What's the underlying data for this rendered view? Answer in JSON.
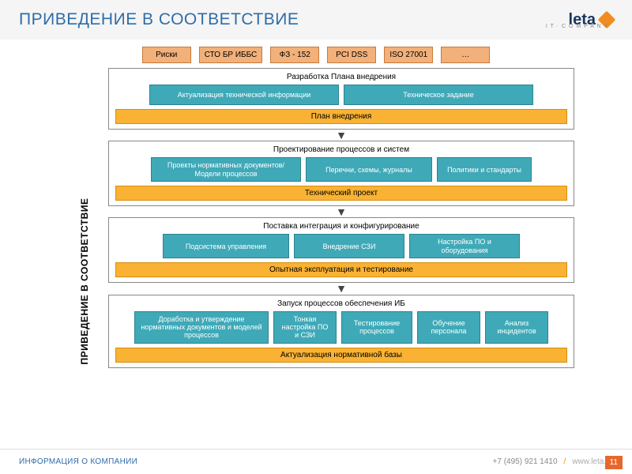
{
  "header": {
    "title": "ПРИВЕДЕНИЕ В СООТВЕТСТВИЕ",
    "logo_text": "leta",
    "logo_sub": "I T · C O M P A N Y"
  },
  "colors": {
    "title": "#2f6da8",
    "tag_bg": "#f2b07a",
    "tag_border": "#c97a3a",
    "teal_bg": "#3fa9b8",
    "teal_border": "#2a8490",
    "orange_bg": "#f9b233",
    "orange_border": "#d68f10",
    "page_badge": "#e8682c"
  },
  "tags": [
    "Риски",
    "СТО БР ИББС",
    "ФЗ - 152",
    "PCI DSS",
    "ISO 27001",
    "…"
  ],
  "side_label": "ПРИВЕДЕНИЕ В СООТВЕТСТВИЕ",
  "stages": [
    {
      "title": "Разработка Плана внедрения",
      "items": [
        "Актуализация технической информации",
        "Техническое задание"
      ],
      "result": "План внедрения",
      "item_widths": [
        240,
        240
      ]
    },
    {
      "title": "Проектирование процессов и систем",
      "items": [
        "Проекты нормативных документов/ Модели процессов",
        "Перечни, схемы, журналы",
        "Политики и стандарты"
      ],
      "result": "Технический проект",
      "item_widths": [
        190,
        160,
        120
      ]
    },
    {
      "title": "Поставка интеграция и конфигурирование",
      "items": [
        "Подсистема управления",
        "Внедрение СЗИ",
        "Настройка ПО и оборудования"
      ],
      "result": "Опытная эксплуатация и тестирование",
      "item_widths": [
        160,
        140,
        140
      ]
    },
    {
      "title": "Запуск процессов обеспечения ИБ",
      "items": [
        "Доработка и утверждение нормативных документов и моделей процессов",
        "Тонкая настройка ПО и СЗИ",
        "Тестирование процессов",
        "Обучение персонала",
        "Анализ инцидентов"
      ],
      "result": "Актуализация нормативной базы",
      "item_widths": [
        170,
        80,
        90,
        80,
        80
      ]
    }
  ],
  "footer": {
    "left": "ИНФОРМАЦИЯ О КОМПАНИИ",
    "phone": "+7 (495) 921 1410",
    "sep": "/",
    "url": "www.leta.ru",
    "page": "11"
  }
}
